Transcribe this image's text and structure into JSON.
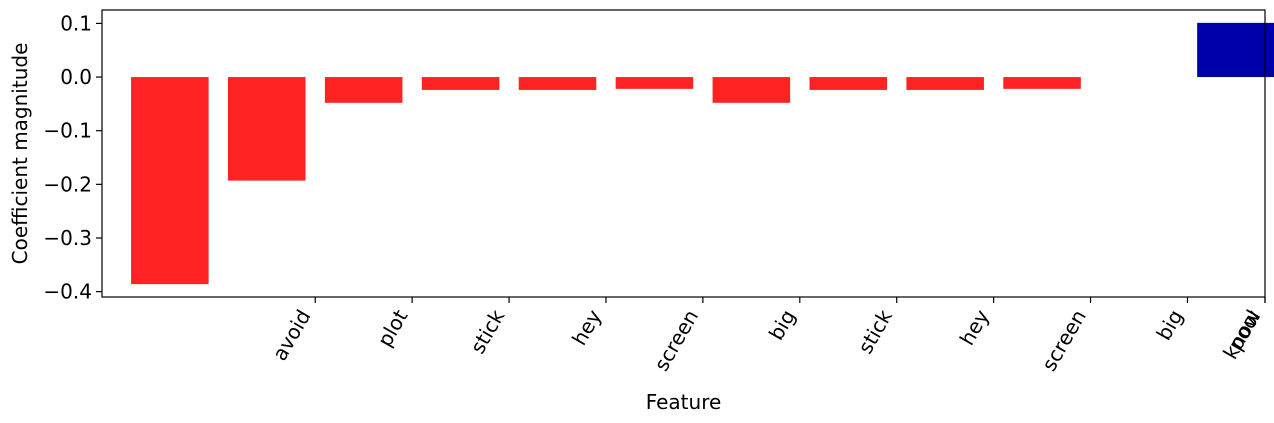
{
  "chart_data": {
    "type": "bar",
    "title": "",
    "xlabel": "Feature",
    "ylabel": "Coefficient magnitude",
    "ylim": [
      -0.41,
      0.125
    ],
    "yticks": [
      0.1,
      0.0,
      -0.1,
      -0.2,
      -0.3,
      -0.4
    ],
    "ytick_labels": [
      "0.1",
      "0.0",
      "−0.1",
      "−0.2",
      "−0.3",
      "−0.4"
    ],
    "xlim": [
      -0.7,
      11.3
    ],
    "tick_positions": [
      1.5,
      2.5,
      3.5,
      4.5,
      5.5,
      6.5,
      7.5,
      8.5,
      9.5,
      10.5,
      11.5,
      12.5
    ],
    "tick_labels": [
      "avoid",
      "plot",
      "stick",
      "hey",
      "screen",
      "big",
      "stick",
      "hey",
      "screen",
      "big",
      "pool",
      "know"
    ],
    "bars": [
      {
        "x": 0,
        "value": -0.386,
        "color": "#ff2222"
      },
      {
        "x": 1,
        "value": -0.193,
        "color": "#ff2222"
      },
      {
        "x": 2,
        "value": -0.048,
        "color": "#ff2222"
      },
      {
        "x": 3,
        "value": -0.024,
        "color": "#ff2222"
      },
      {
        "x": 4,
        "value": -0.024,
        "color": "#ff2222"
      },
      {
        "x": 5,
        "value": -0.022,
        "color": "#ff2222"
      },
      {
        "x": 6,
        "value": -0.048,
        "color": "#ff2222"
      },
      {
        "x": 7,
        "value": -0.024,
        "color": "#ff2222"
      },
      {
        "x": 8,
        "value": -0.024,
        "color": "#ff2222"
      },
      {
        "x": 9,
        "value": -0.022,
        "color": "#ff2222"
      },
      {
        "x": 11,
        "value": 0.101,
        "color": "#0000aa"
      }
    ],
    "grid": false,
    "colors": {
      "negative": "#ff2222",
      "positive": "#0000aa"
    }
  }
}
